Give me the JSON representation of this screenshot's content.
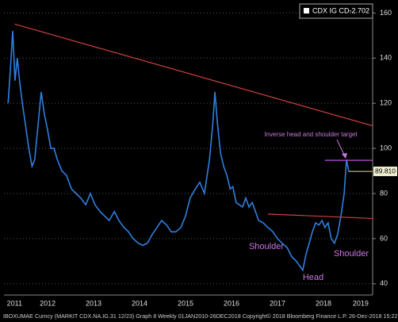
{
  "chart_data": {
    "type": "line",
    "legend_name": "CDX IG CD...",
    "legend_change": "-2.702",
    "footer": "IBOXUMAE Curncy (MARKIT CDX.NA.IG.31 12/23) Graph 8  Weekly 01JAN2010-26DEC2018   Copyright© 2018 Bloomberg Finance L.P.   26-Dec-2018 15:22:07",
    "x": [
      2011.64,
      2011.69,
      2011.74,
      2011.79,
      2011.84,
      2011.9,
      2011.95,
      2012.02,
      2012.09,
      2012.16,
      2012.22,
      2012.29,
      2012.36,
      2012.43,
      2012.5,
      2012.57,
      2012.64,
      2012.71,
      2012.81,
      2012.91,
      2013.02,
      2013.12,
      2013.22,
      2013.33,
      2013.43,
      2013.53,
      2013.64,
      2013.74,
      2013.84,
      2013.95,
      2014.05,
      2014.16,
      2014.26,
      2014.36,
      2014.47,
      2014.57,
      2014.67,
      2014.78,
      2014.88,
      2014.98,
      2015.09,
      2015.19,
      2015.29,
      2015.4,
      2015.5,
      2015.6,
      2015.71,
      2015.81,
      2015.91,
      2016.02,
      2016.09,
      2016.14,
      2016.19,
      2016.26,
      2016.33,
      2016.4,
      2016.47,
      2016.53,
      2016.6,
      2016.67,
      2016.74,
      2016.81,
      2016.88,
      2016.95,
      2017.02,
      2017.09,
      2017.19,
      2017.29,
      2017.4,
      2017.5,
      2017.6,
      2017.71,
      2017.81,
      2017.91,
      2017.98,
      2018.05,
      2018.12,
      2018.19,
      2018.26,
      2018.33,
      2018.4,
      2018.47,
      2018.53,
      2018.6,
      2018.67,
      2018.74,
      2018.81,
      2018.88,
      2018.95,
      2019.0,
      2019.05
    ],
    "series": [
      {
        "name": "CDX IG CD...",
        "color": "#2f7fe0",
        "values": [
          120,
          135,
          152,
          130,
          140,
          128,
          120,
          110,
          100,
          92,
          95,
          110,
          125,
          115,
          108,
          100,
          100,
          95,
          90,
          88,
          82,
          80,
          78,
          75,
          80,
          75,
          72,
          70,
          68,
          72,
          68,
          65,
          63,
          60,
          58,
          57,
          58,
          62,
          65,
          68,
          66,
          63,
          63,
          65,
          70,
          78,
          82,
          85,
          80,
          95,
          110,
          125,
          112,
          98,
          92,
          88,
          82,
          83,
          76,
          75,
          74,
          78,
          74,
          76,
          72,
          68,
          67,
          65,
          63,
          60,
          58,
          56,
          52,
          50,
          48,
          46,
          53,
          58,
          63,
          67,
          66,
          68,
          65,
          67,
          60,
          58,
          62,
          70,
          80,
          95,
          89.81
        ]
      }
    ],
    "last_value_label": {
      "value": 89.81,
      "label": "89.810"
    },
    "xlim": [
      2011.55,
      2019.57
    ],
    "ylim": [
      35,
      164
    ],
    "yticks": [
      40,
      60,
      80,
      100,
      120,
      140,
      160
    ],
    "xticks": [
      {
        "value": 2011.78,
        "label": "2011"
      },
      {
        "value": 2012.5,
        "label": "2012"
      },
      {
        "value": 2013.5,
        "label": "2013"
      },
      {
        "value": 2014.5,
        "label": "2014"
      },
      {
        "value": 2015.5,
        "label": "2015"
      },
      {
        "value": 2016.5,
        "label": "2016"
      },
      {
        "value": 2017.5,
        "label": "2017"
      },
      {
        "value": 2018.5,
        "label": "2018"
      },
      {
        "value": 2019.31,
        "label": "2019"
      }
    ],
    "grid": true,
    "lines": [
      {
        "x": [
          2011.78,
          2020.09
        ],
        "y": [
          155.1,
          107
        ],
        "color": "#d04040"
      },
      {
        "x": [
          2017.29,
          2020.09
        ],
        "y": [
          70.9,
          68.5
        ],
        "color": "#d04040"
      },
      {
        "x": [
          2018.53,
          2019.57
        ],
        "y": [
          94.7,
          94.7
        ],
        "color": "#c050e0"
      }
    ],
    "annotations": [
      "Inverse head and shoulder target",
      "Shoulder",
      "Head",
      "Shoulder"
    ]
  }
}
